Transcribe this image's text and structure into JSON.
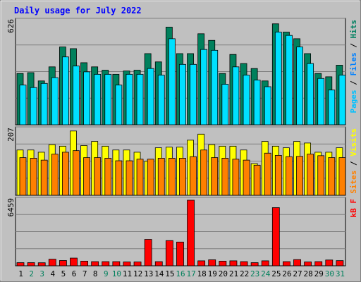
{
  "chart_data": {
    "type": "bar",
    "title": "Daily usage for July 2022",
    "days": [
      "1",
      "2",
      "3",
      "4",
      "5",
      "6",
      "7",
      "8",
      "9",
      "10",
      "11",
      "12",
      "13",
      "14",
      "15",
      "16",
      "17",
      "18",
      "19",
      "20",
      "21",
      "22",
      "23",
      "24",
      "25",
      "26",
      "27",
      "28",
      "29",
      "30",
      "31"
    ],
    "weekend_days": [
      "2",
      "3",
      "9",
      "10",
      "16",
      "17",
      "23",
      "24",
      "30",
      "31"
    ],
    "panels": [
      {
        "key": "hits",
        "ymax_label": "626",
        "ymax": 626,
        "legend": [
          {
            "label": "Pages",
            "color": "#00c0ff"
          },
          {
            "label": "Files",
            "color": "#0080ff"
          },
          {
            "label": "Hits",
            "color": "#008060"
          }
        ],
        "series": [
          {
            "name": "Hits",
            "color": "#00805c",
            "values": [
              310,
              315,
              265,
              350,
              470,
              460,
              375,
              350,
              330,
              305,
              325,
              330,
              430,
              380,
              590,
              430,
              430,
              550,
              510,
              310,
              425,
              370,
              340,
              265,
              610,
              560,
              520,
              430,
              310,
              290,
              360
            ]
          },
          {
            "name": "Files",
            "color": "#00e0ff",
            "values": [
              240,
              225,
              250,
              285,
              410,
              355,
              320,
              305,
              305,
              240,
              305,
              305,
              340,
              300,
              520,
              365,
              365,
              455,
              450,
              245,
              350,
              300,
              270,
              230,
              560,
              540,
              470,
              370,
              280,
              210,
              300
            ]
          }
        ]
      },
      {
        "key": "visits",
        "ymax_label": "207",
        "ymax": 207,
        "legend": [
          {
            "label": "Sites",
            "color": "#ff8000"
          },
          {
            "label": "Visits",
            "color": "#ffff00"
          }
        ],
        "series": [
          {
            "name": "Visits",
            "color": "#ffff00",
            "values": [
              143,
              143,
              136,
              160,
              155,
              203,
              157,
              170,
              155,
              143,
              143,
              136,
              108,
              150,
              152,
              152,
              174,
              193,
              160,
              155,
              155,
              143,
              100,
              170,
              155,
              150,
              170,
              165,
              136,
              136,
              150
            ]
          },
          {
            "name": "Sites",
            "color": "#ff8000",
            "values": [
              119,
              117,
              111,
              130,
              136,
              141,
              119,
              119,
              117,
              109,
              109,
              114,
              114,
              117,
              117,
              117,
              122,
              143,
              119,
              117,
              114,
              111,
              95,
              133,
              126,
              122,
              123,
              130,
              125,
              119,
              119
            ]
          }
        ]
      },
      {
        "key": "kbytes",
        "ymax_label": "6459",
        "ymax": 6459,
        "legend": [
          {
            "label": "kB F",
            "color": "#ff0000"
          }
        ],
        "series": [
          {
            "name": "kB F",
            "color": "#ff0000",
            "values": [
              310,
              310,
              300,
              650,
              520,
              760,
              460,
              410,
              410,
              410,
              380,
              380,
              2600,
              410,
              2480,
              2340,
              6459,
              490,
              590,
              460,
              490,
              410,
              310,
              490,
              5730,
              410,
              610,
              380,
              410,
              570,
              510
            ]
          }
        ]
      }
    ]
  }
}
